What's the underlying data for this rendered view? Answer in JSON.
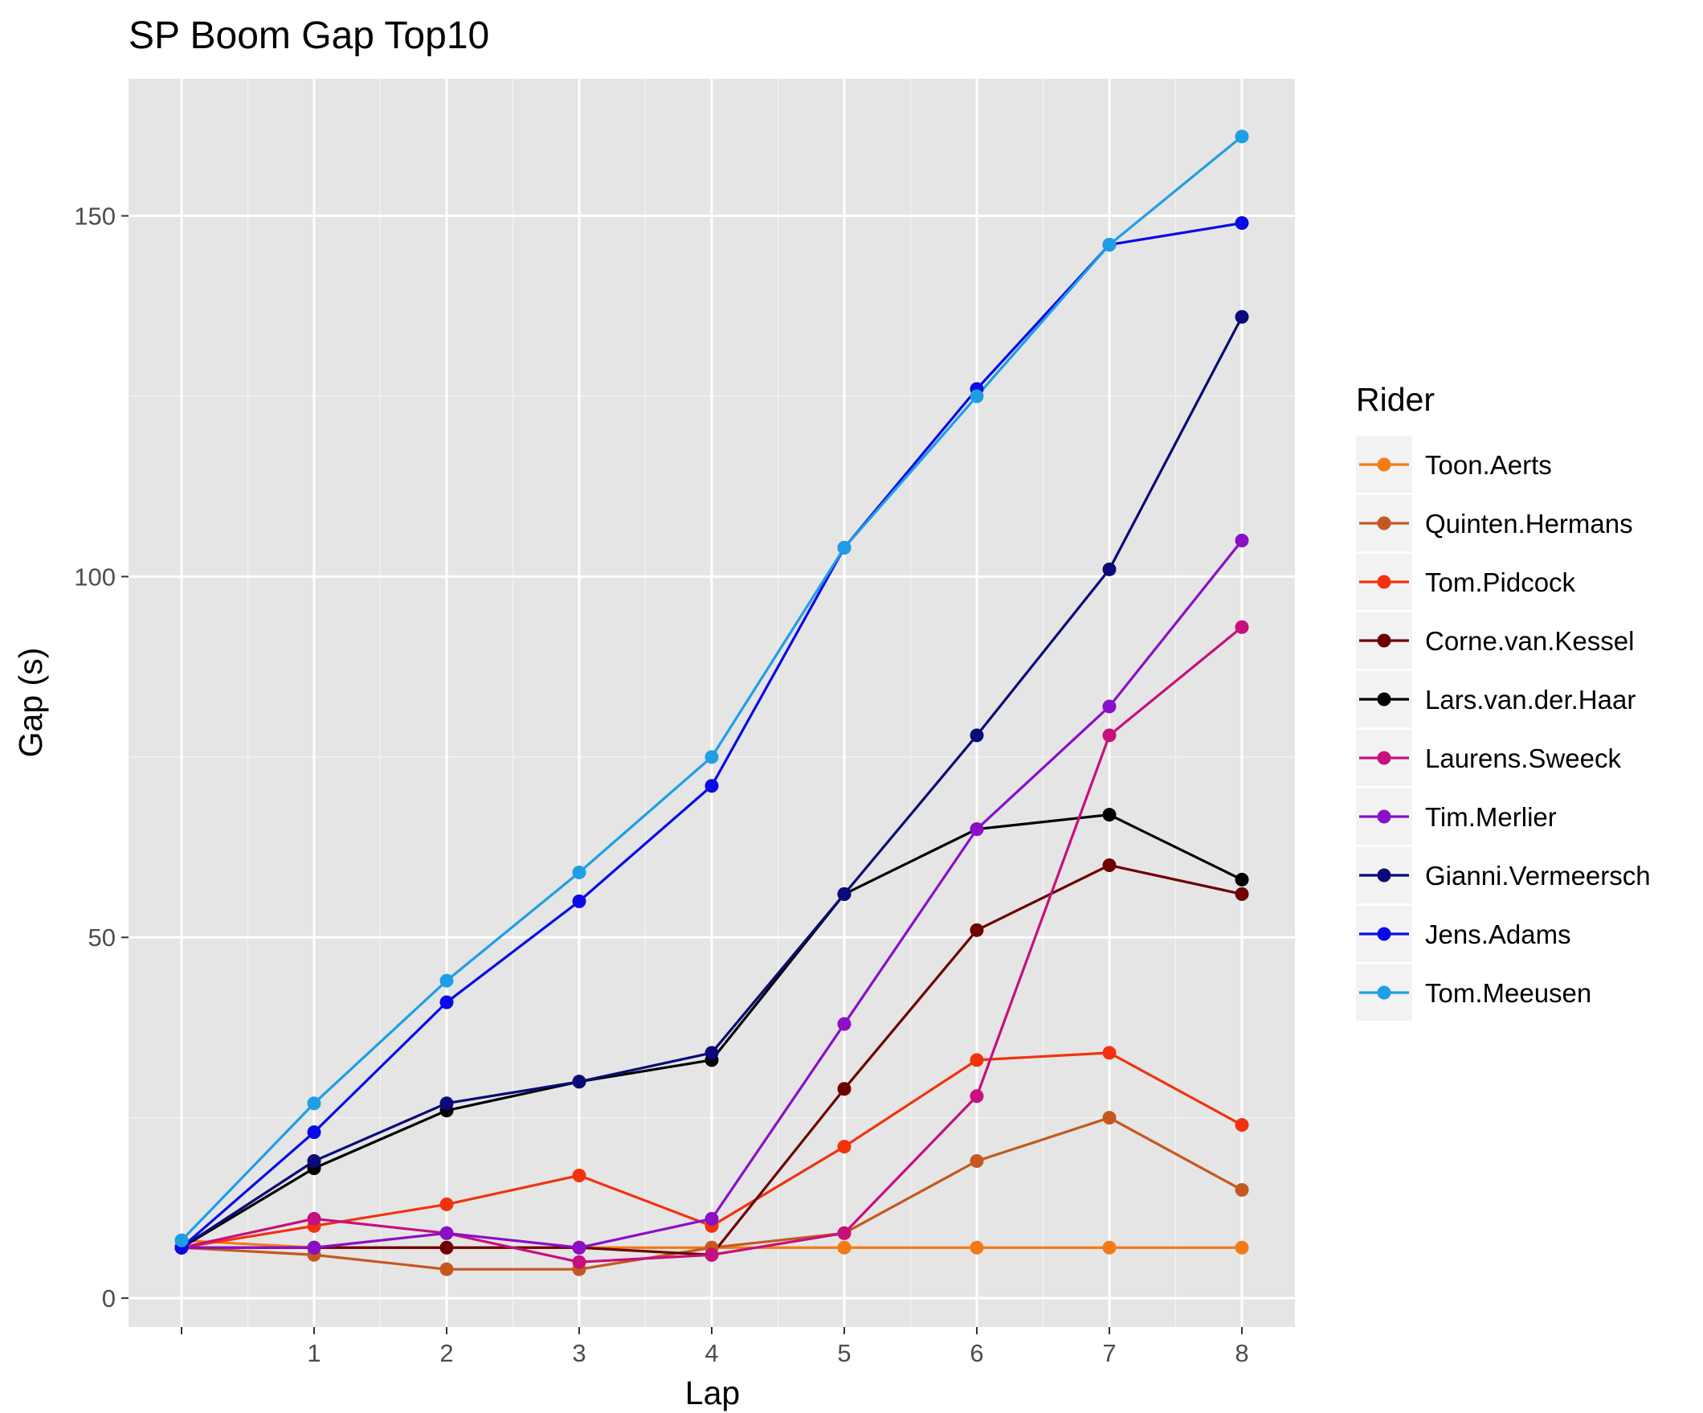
{
  "chart_data": {
    "type": "line",
    "title": "SP Boom Gap Top10",
    "xlabel": "Lap",
    "ylabel": "Gap (s)",
    "x": [
      0,
      1,
      2,
      3,
      4,
      5,
      6,
      7,
      8
    ],
    "x_ticks": [
      1,
      2,
      3,
      4,
      5,
      6,
      7,
      8
    ],
    "y_ticks": [
      0,
      50,
      100,
      150
    ],
    "xlim": [
      -0.4,
      8.4
    ],
    "ylim": [
      -4,
      169
    ],
    "grid": true,
    "legend": {
      "title": "Rider",
      "position": "right"
    },
    "series": [
      {
        "name": "Toon.Aerts",
        "color": "#f47a16",
        "values": [
          8,
          7,
          7,
          7,
          7,
          7,
          7,
          7,
          7
        ]
      },
      {
        "name": "Quinten.Hermans",
        "color": "#c4581f",
        "values": [
          7,
          6,
          4,
          4,
          7,
          9,
          19,
          25,
          15
        ]
      },
      {
        "name": "Tom.Pidcock",
        "color": "#f2320f",
        "values": [
          7,
          10,
          13,
          17,
          10,
          21,
          33,
          34,
          24
        ]
      },
      {
        "name": "Corne.van.Kessel",
        "color": "#6e0000",
        "values": [
          7,
          7,
          7,
          7,
          6,
          29,
          51,
          60,
          56
        ]
      },
      {
        "name": "Lars.van.der.Haar",
        "color": "#000000",
        "values": [
          7,
          18,
          26,
          30,
          33,
          56,
          65,
          67,
          58
        ]
      },
      {
        "name": "Laurens.Sweeck",
        "color": "#c70f7d",
        "values": [
          7,
          11,
          9,
          5,
          6,
          9,
          28,
          78,
          93
        ]
      },
      {
        "name": "Tim.Merlier",
        "color": "#8a0fc7",
        "values": [
          7,
          7,
          9,
          7,
          11,
          38,
          65,
          82,
          105
        ]
      },
      {
        "name": "Gianni.Vermeersch",
        "color": "#0a0a78",
        "values": [
          7,
          19,
          27,
          30,
          34,
          56,
          78,
          101,
          136
        ]
      },
      {
        "name": "Jens.Adams",
        "color": "#0a0ae6",
        "values": [
          7,
          23,
          41,
          55,
          71,
          104,
          126,
          146,
          149
        ]
      },
      {
        "name": "Tom.Meeusen",
        "color": "#1f9ee6",
        "values": [
          8,
          27,
          44,
          59,
          75,
          104,
          125,
          146,
          161
        ]
      }
    ]
  }
}
